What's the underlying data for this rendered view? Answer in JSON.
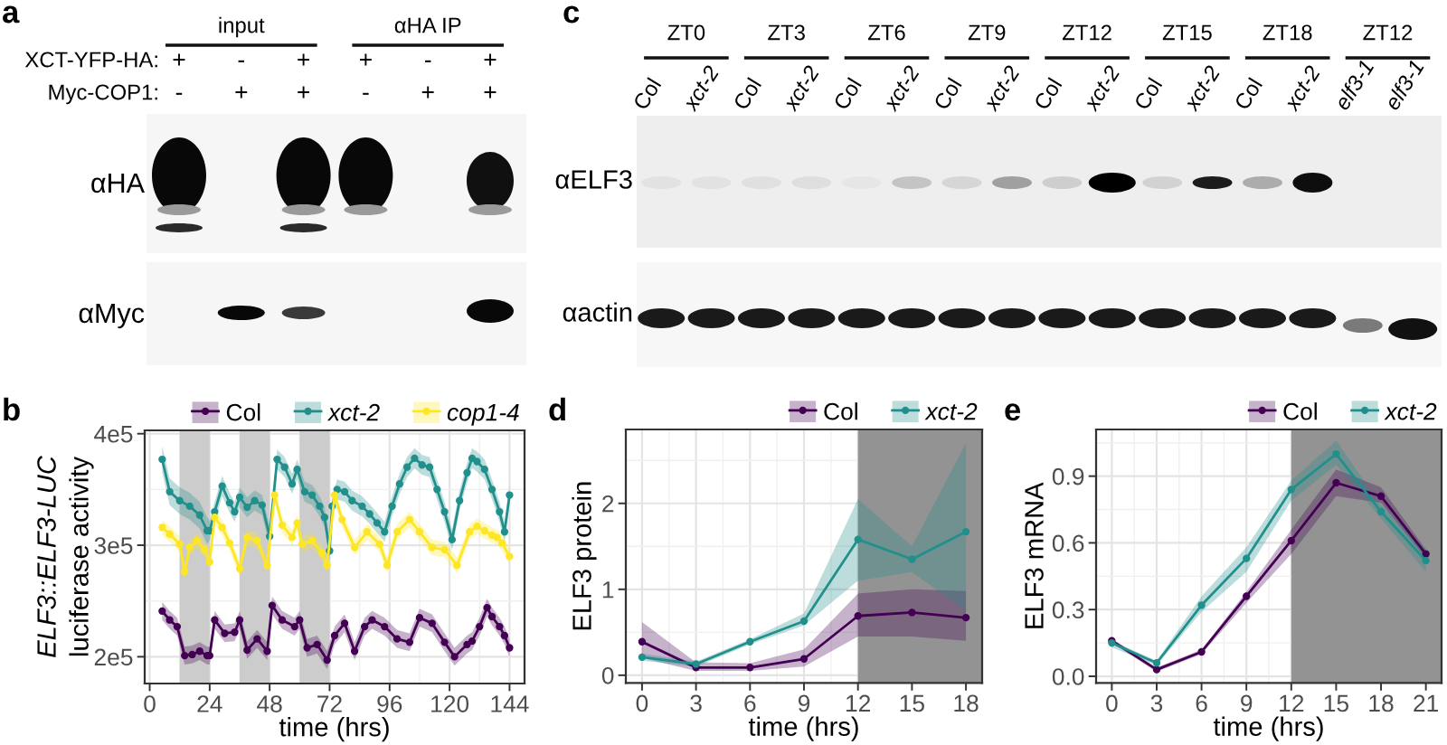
{
  "chart_data": [
    {
      "type": "other",
      "title": "a",
      "categories": [
        "input",
        "αHA IP"
      ],
      "y_categories": [
        "αHA",
        "αMyc"
      ],
      "annotations": [
        "XCT-YFP-HA:",
        "Myc-COP1:",
        "+",
        "-",
        "+",
        "+",
        "-",
        "+",
        "-",
        "+",
        "+",
        "-",
        "+",
        "+"
      ]
    },
    {
      "type": "other",
      "title": "c",
      "categories": [
        "Col",
        "xct-2",
        "Col",
        "xct-2",
        "Col",
        "xct-2",
        "Col",
        "xct-2",
        "Col",
        "xct-2",
        "Col",
        "xct-2",
        "Col",
        "xct-2",
        "elf3-1",
        "elf3-1"
      ],
      "annotations": [
        "ZT0",
        "ZT3",
        "ZT6",
        "ZT9",
        "ZT12",
        "ZT15",
        "ZT18",
        "ZT12"
      ],
      "y_categories": [
        "αELF3",
        "αactin"
      ]
    },
    {
      "type": "line",
      "title": "b",
      "xlabel": "time (hrs)",
      "ylabel": "ELF3::ELF3-LUC\nluciferase activity",
      "xlim": [
        -2,
        150
      ],
      "xticks": [
        0,
        24,
        48,
        72,
        96,
        120,
        144
      ],
      "ylim": [
        176000,
        403000
      ],
      "yticks": [
        {
          "value": 200000,
          "label": "2e5"
        },
        {
          "value": 300000,
          "label": "3e5"
        },
        {
          "value": 400000,
          "label": "4e5"
        }
      ],
      "grid": true,
      "legend": "top right",
      "marker": "circle",
      "line_style": "solid",
      "bands": [
        {
          "axis": "x",
          "from": 12,
          "to": 24,
          "color": "#cccccc"
        },
        {
          "axis": "x",
          "from": 36,
          "to": 48,
          "color": "#cccccc"
        },
        {
          "axis": "x",
          "from": 60,
          "to": 72,
          "color": "#cccccc"
        }
      ],
      "series": [
        {
          "name": "Col",
          "color": "#440154",
          "x": [
            5,
            8,
            11,
            14,
            17,
            20,
            23,
            24,
            26,
            30,
            34,
            36,
            39,
            43,
            47,
            49,
            53,
            58,
            60,
            63,
            67,
            71,
            74,
            78,
            82,
            86,
            89,
            94,
            99,
            104,
            108,
            113,
            118,
            122,
            127,
            129,
            132,
            135,
            137,
            140,
            142,
            144
          ],
          "values": [
            241000,
            233000,
            227000,
            201000,
            202000,
            205000,
            201000,
            201000,
            233000,
            221000,
            222000,
            233000,
            206000,
            216000,
            205000,
            246000,
            233000,
            227000,
            233000,
            208000,
            211000,
            197000,
            219000,
            230000,
            205000,
            227000,
            233000,
            227000,
            216000,
            213000,
            235000,
            230000,
            213000,
            200000,
            211000,
            214000,
            227000,
            244000,
            236000,
            227000,
            219000,
            208000
          ],
          "lower": [
            233000,
            225000,
            219000,
            193000,
            194000,
            197000,
            193000,
            193000,
            225000,
            213000,
            214000,
            225000,
            198000,
            208000,
            197000,
            238000,
            225000,
            219000,
            225000,
            200000,
            203000,
            189000,
            211000,
            222000,
            197000,
            219000,
            225000,
            219000,
            208000,
            205000,
            227000,
            222000,
            205000,
            192000,
            203000,
            206000,
            219000,
            236000,
            228000,
            219000,
            211000,
            200000
          ],
          "upper": [
            249000,
            241000,
            235000,
            209000,
            210000,
            213000,
            209000,
            209000,
            241000,
            229000,
            230000,
            241000,
            214000,
            224000,
            213000,
            254000,
            241000,
            235000,
            241000,
            216000,
            219000,
            205000,
            227000,
            238000,
            213000,
            235000,
            241000,
            235000,
            224000,
            221000,
            243000,
            238000,
            221000,
            208000,
            219000,
            222000,
            235000,
            252000,
            244000,
            235000,
            227000,
            216000
          ]
        },
        {
          "name": "xct-2",
          "color": "#21908c",
          "x": [
            5,
            8,
            12,
            16,
            20,
            23,
            24,
            26,
            29,
            32,
            34,
            36,
            39,
            42,
            45,
            48,
            51,
            54,
            57,
            59,
            62,
            65,
            68,
            70,
            72,
            73,
            75,
            78,
            81,
            85,
            88,
            91,
            94,
            97,
            100,
            103,
            106,
            109,
            112,
            115,
            118,
            121,
            124,
            127,
            129,
            131,
            134,
            137,
            140,
            142,
            144
          ],
          "values": [
            377000,
            348000,
            340000,
            335000,
            327000,
            313000,
            313000,
            330000,
            353000,
            338000,
            330000,
            343000,
            334000,
            340000,
            336000,
            308000,
            377000,
            370000,
            355000,
            368000,
            348000,
            345000,
            335000,
            325000,
            295000,
            335000,
            350000,
            348000,
            340000,
            335000,
            328000,
            320000,
            312000,
            335000,
            355000,
            370000,
            378000,
            372000,
            370000,
            350000,
            330000,
            305000,
            340000,
            365000,
            378000,
            375000,
            368000,
            350000,
            330000,
            312000,
            345000
          ],
          "lower": [
            365000,
            336000,
            328000,
            323000,
            315000,
            301000,
            304000,
            321000,
            344000,
            329000,
            321000,
            334000,
            325000,
            331000,
            327000,
            299000,
            368000,
            361000,
            346000,
            359000,
            339000,
            336000,
            326000,
            316000,
            286000,
            326000,
            341000,
            339000,
            331000,
            326000,
            319000,
            311000,
            303000,
            326000,
            346000,
            361000,
            369000,
            363000,
            361000,
            341000,
            321000,
            296000,
            331000,
            356000,
            369000,
            366000,
            359000,
            341000,
            321000,
            303000,
            336000
          ],
          "upper": [
            389000,
            360000,
            352000,
            347000,
            339000,
            325000,
            322000,
            339000,
            362000,
            347000,
            339000,
            352000,
            343000,
            349000,
            345000,
            317000,
            386000,
            379000,
            364000,
            377000,
            357000,
            354000,
            344000,
            334000,
            304000,
            344000,
            359000,
            357000,
            349000,
            344000,
            337000,
            329000,
            321000,
            344000,
            364000,
            379000,
            387000,
            381000,
            379000,
            359000,
            339000,
            314000,
            349000,
            374000,
            387000,
            384000,
            377000,
            359000,
            339000,
            321000,
            354000
          ]
        },
        {
          "name": "cop1-4",
          "color": "#fde725",
          "x": [
            5,
            8,
            12,
            14,
            16,
            19,
            22,
            24,
            26,
            29,
            32,
            36,
            39,
            43,
            47,
            50,
            53,
            57,
            59,
            61,
            65,
            69,
            71,
            74,
            77,
            82,
            87,
            92,
            95,
            99,
            104,
            108,
            113,
            118,
            123,
            128,
            131,
            134,
            137,
            139,
            141,
            144
          ],
          "values": [
            316000,
            310000,
            301000,
            276000,
            298000,
            304000,
            296000,
            285000,
            325000,
            316000,
            302000,
            279000,
            307000,
            304000,
            282000,
            345000,
            318000,
            307000,
            320000,
            301000,
            304000,
            293000,
            282000,
            345000,
            323000,
            298000,
            312000,
            301000,
            282000,
            312000,
            323000,
            312000,
            298000,
            296000,
            282000,
            312000,
            317000,
            313000,
            309000,
            307000,
            302000,
            290000
          ],
          "lower": [
            309000,
            303000,
            294000,
            269000,
            291000,
            297000,
            289000,
            278000,
            318000,
            309000,
            295000,
            272000,
            300000,
            297000,
            275000,
            338000,
            311000,
            300000,
            313000,
            294000,
            297000,
            286000,
            275000,
            338000,
            316000,
            291000,
            305000,
            294000,
            275000,
            305000,
            316000,
            305000,
            291000,
            289000,
            275000,
            305000,
            310000,
            306000,
            302000,
            300000,
            295000,
            283000
          ],
          "upper": [
            323000,
            317000,
            308000,
            283000,
            305000,
            311000,
            303000,
            292000,
            332000,
            323000,
            309000,
            286000,
            314000,
            311000,
            289000,
            352000,
            325000,
            314000,
            327000,
            308000,
            311000,
            300000,
            289000,
            352000,
            330000,
            305000,
            319000,
            308000,
            289000,
            319000,
            330000,
            319000,
            305000,
            303000,
            289000,
            319000,
            324000,
            320000,
            316000,
            314000,
            309000,
            297000
          ]
        }
      ]
    },
    {
      "type": "line",
      "title": "d",
      "xlabel": "time (hrs)",
      "ylabel": "ELF3 protein",
      "xlim": [
        -0.9,
        18.9
      ],
      "xticks": [
        0,
        3,
        6,
        9,
        12,
        15,
        18
      ],
      "ylim": [
        -0.09,
        2.86
      ],
      "yticks": [
        0,
        1,
        2
      ],
      "grid": true,
      "legend": "top right",
      "marker": "circle",
      "line_style": "solid",
      "bands": [
        {
          "axis": "x",
          "from": 12,
          "to": 18.9,
          "color": "#939393"
        }
      ],
      "series": [
        {
          "name": "Col",
          "color": "#440154",
          "x": [
            0,
            3,
            6,
            9,
            12,
            15,
            18
          ],
          "values": [
            0.39,
            0.09,
            0.09,
            0.19,
            0.69,
            0.73,
            0.67
          ],
          "lower": [
            0.2,
            0.05,
            0.05,
            0.1,
            0.45,
            0.45,
            0.4
          ],
          "upper": [
            0.62,
            0.15,
            0.14,
            0.3,
            0.95,
            1.0,
            0.98
          ]
        },
        {
          "name": "xct-2",
          "color": "#21908c",
          "x": [
            0,
            3,
            6,
            9,
            12,
            15,
            18
          ],
          "values": [
            0.21,
            0.13,
            0.39,
            0.63,
            1.58,
            1.35,
            1.67
          ],
          "lower": [
            0.17,
            0.1,
            0.36,
            0.58,
            1.1,
            1.2,
            0.75
          ],
          "upper": [
            0.25,
            0.16,
            0.42,
            0.72,
            2.05,
            1.5,
            2.7
          ]
        }
      ]
    },
    {
      "type": "line",
      "title": "e",
      "xlabel": "time (hrs)",
      "ylabel": "ELF3 mRNA",
      "xlim": [
        -1.05,
        22.05
      ],
      "xticks": [
        0,
        3,
        6,
        9,
        12,
        15,
        18,
        21
      ],
      "ylim": [
        -0.03,
        1.11
      ],
      "yticks": [
        {
          "value": 0,
          "label": "0.0"
        },
        0.3,
        0.6,
        0.9
      ],
      "grid": true,
      "legend": "top right",
      "marker": "circle",
      "line_style": "solid",
      "bands": [
        {
          "axis": "x",
          "from": 12,
          "to": 22.05,
          "color": "#939393"
        }
      ],
      "series": [
        {
          "name": "Col",
          "color": "#440154",
          "x": [
            0,
            3,
            6,
            9,
            12,
            15,
            18,
            21
          ],
          "values": [
            0.16,
            0.03,
            0.11,
            0.36,
            0.61,
            0.87,
            0.81,
            0.55
          ],
          "lower": [
            0.15,
            0.02,
            0.1,
            0.33,
            0.55,
            0.81,
            0.78,
            0.53
          ],
          "upper": [
            0.17,
            0.04,
            0.12,
            0.38,
            0.66,
            0.93,
            0.85,
            0.57
          ]
        },
        {
          "name": "xct-2",
          "color": "#21908c",
          "x": [
            0,
            3,
            6,
            9,
            12,
            15,
            18,
            21
          ],
          "values": [
            0.15,
            0.06,
            0.32,
            0.53,
            0.84,
            1.0,
            0.74,
            0.52
          ],
          "lower": [
            0.13,
            0.05,
            0.29,
            0.47,
            0.79,
            0.95,
            0.71,
            0.47
          ],
          "upper": [
            0.16,
            0.07,
            0.36,
            0.58,
            0.88,
            1.06,
            0.77,
            0.57
          ]
        }
      ]
    }
  ]
}
